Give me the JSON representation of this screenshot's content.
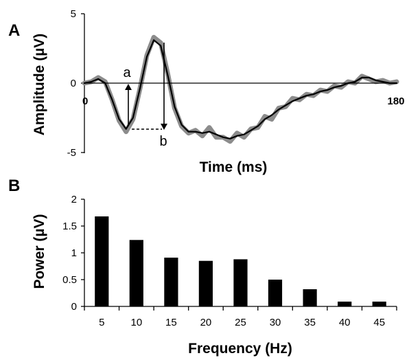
{
  "chart_data": [
    {
      "panel_label": "A",
      "type": "line",
      "xlabel": "Time (ms)",
      "ylabel": "Amplitude (µV)",
      "xlim": [
        0,
        180
      ],
      "ylim": [
        -5,
        5
      ],
      "y_ticks": [
        "5",
        "0",
        "-5"
      ],
      "x_tick_labels": [
        "0",
        "180"
      ],
      "annotations": [
        "a",
        "b"
      ],
      "series": [
        {
          "role": "raw",
          "color": "#8c8c8c",
          "x": [
            0,
            4,
            8,
            12,
            16,
            20,
            24,
            28,
            32,
            36,
            40,
            44,
            48,
            52,
            56,
            60,
            64,
            68,
            72,
            76,
            80,
            84,
            88,
            92,
            96,
            100,
            104,
            108,
            112,
            116,
            120,
            124,
            128,
            132,
            136,
            140,
            144,
            148,
            152,
            156,
            160,
            164,
            168,
            172,
            176,
            180
          ],
          "y": [
            0.0,
            0.1,
            0.4,
            0.1,
            -1.2,
            -2.7,
            -3.5,
            -2.6,
            -0.4,
            2.0,
            3.3,
            2.9,
            0.7,
            -1.8,
            -3.1,
            -3.6,
            -3.4,
            -3.8,
            -3.2,
            -3.9,
            -3.9,
            -4.2,
            -3.6,
            -3.9,
            -3.3,
            -3.2,
            -2.4,
            -2.6,
            -1.8,
            -1.7,
            -1.1,
            -1.2,
            -0.8,
            -0.9,
            -0.5,
            -0.6,
            -0.2,
            -0.3,
            0.1,
            0.0,
            0.5,
            0.3,
            0.1,
            0.2,
            0.0,
            0.1
          ]
        },
        {
          "role": "filtered",
          "color": "#000000",
          "x": [
            0,
            4,
            8,
            12,
            16,
            20,
            24,
            28,
            32,
            36,
            40,
            44,
            48,
            52,
            56,
            60,
            64,
            68,
            72,
            76,
            80,
            84,
            88,
            92,
            96,
            100,
            104,
            108,
            112,
            116,
            120,
            124,
            128,
            132,
            136,
            140,
            144,
            148,
            152,
            156,
            160,
            164,
            168,
            172,
            176,
            180
          ],
          "y": [
            0.0,
            0.1,
            0.3,
            0.0,
            -1.2,
            -2.6,
            -3.3,
            -2.5,
            -0.4,
            1.9,
            3.1,
            2.7,
            0.6,
            -1.7,
            -3.0,
            -3.5,
            -3.5,
            -3.6,
            -3.5,
            -3.7,
            -3.9,
            -4.0,
            -3.8,
            -3.7,
            -3.4,
            -3.1,
            -2.6,
            -2.3,
            -1.9,
            -1.6,
            -1.3,
            -1.1,
            -0.9,
            -0.8,
            -0.6,
            -0.5,
            -0.3,
            -0.2,
            0.0,
            0.1,
            0.4,
            0.4,
            0.2,
            0.1,
            0.0,
            0.0
          ]
        }
      ]
    },
    {
      "panel_label": "B",
      "type": "bar",
      "xlabel": "Frequency (Hz)",
      "ylabel": "Power (µV)",
      "ylim": [
        0,
        2
      ],
      "y_ticks": [
        "0",
        "0.5",
        "1",
        "1.5",
        "2"
      ],
      "categories": [
        "5",
        "10",
        "15",
        "20",
        "25",
        "30",
        "35",
        "40",
        "45"
      ],
      "values": [
        1.68,
        1.24,
        0.91,
        0.85,
        0.88,
        0.5,
        0.32,
        0.09,
        0.09
      ],
      "bar_color": "#000000"
    }
  ]
}
